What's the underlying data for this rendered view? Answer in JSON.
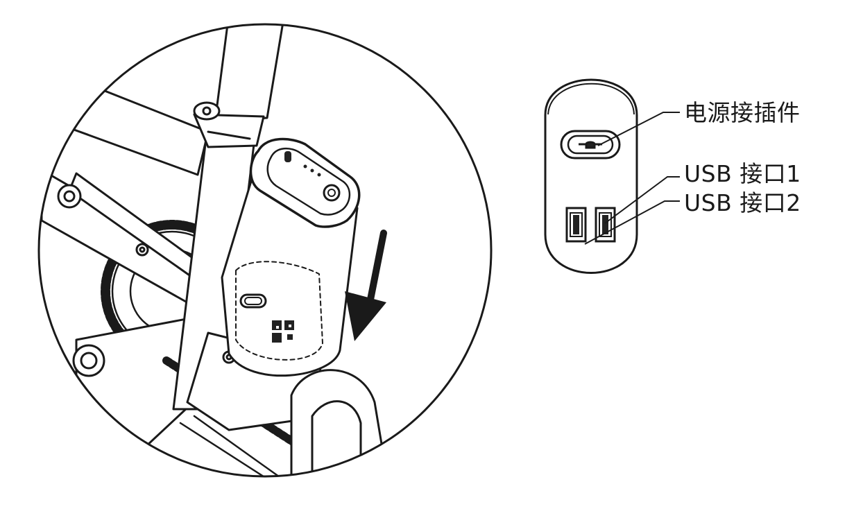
{
  "labels": {
    "power_connector": "电源接插件",
    "usb_port_1": "USB 接口1",
    "usb_port_2": "USB 接口2"
  },
  "colors": {
    "line": "#1a1a1a",
    "background": "#ffffff",
    "fill_light": "#f2f2f2",
    "fill_dark": "#222222"
  },
  "icons": {
    "insert_arrow": "arrow-down-icon",
    "power_socket": "power-socket-icon",
    "usb": "usb-port-icon",
    "qr": "qr-code-icon",
    "indicator": "battery-indicator-icon"
  }
}
